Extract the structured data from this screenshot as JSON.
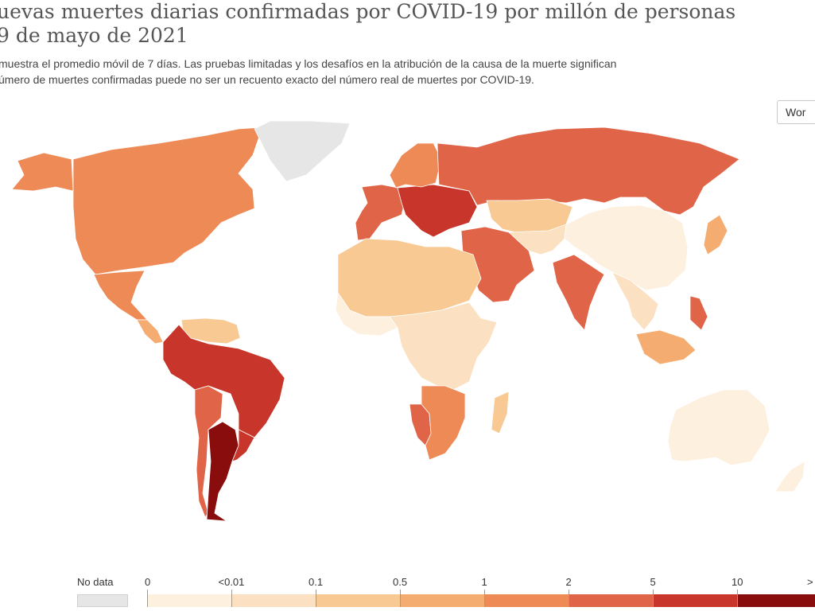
{
  "title_line1": "uevas muertes diarias confirmadas por COVID-19 por millón de personas",
  "title_line2": "9 de mayo de 2021",
  "subtitle_line1": "muestra el promedio móvil de 7 días. Las pruebas limitadas y los desafíos en la atribución de la causa de la muerte significan",
  "subtitle_line2": "úmero de muertes confirmadas puede no ser un recuento exacto del número real de muertes por COVID-19.",
  "region_button": "Wor",
  "legend": {
    "no_data_label": "No data",
    "no_data_color": "#e6e6e6",
    "thresholds": [
      "0",
      "<0.01",
      "0.1",
      "0.5",
      "1",
      "2",
      "5",
      "10",
      ">"
    ],
    "colors": [
      "#fdf0df",
      "#fbe0c1",
      "#f8c993",
      "#f4ac70",
      "#ee8a56",
      "#e06448",
      "#c8352a",
      "#8a0d0d"
    ]
  },
  "regions": [
    {
      "name": "canada-usa",
      "color": "#ee8a56"
    },
    {
      "name": "alaska",
      "color": "#ee8a56"
    },
    {
      "name": "greenland",
      "color": "#e6e6e6"
    },
    {
      "name": "mexico",
      "color": "#ee8a56"
    },
    {
      "name": "central-america",
      "color": "#f4ac70"
    },
    {
      "name": "venezuela-guianas",
      "color": "#f8c993"
    },
    {
      "name": "colombia-peru-brazil",
      "color": "#c8352a"
    },
    {
      "name": "bolivia-chile",
      "color": "#e06448"
    },
    {
      "name": "paraguay-argentina",
      "color": "#8a0d0d"
    },
    {
      "name": "uruguay",
      "color": "#c8352a"
    },
    {
      "name": "western-europe",
      "color": "#e06448"
    },
    {
      "name": "central-eastern-europe",
      "color": "#c8352a"
    },
    {
      "name": "scandinavia",
      "color": "#ee8a56"
    },
    {
      "name": "russia",
      "color": "#e06448"
    },
    {
      "name": "middle-east-iran",
      "color": "#e06448"
    },
    {
      "name": "kazakhstan",
      "color": "#f8c993"
    },
    {
      "name": "central-asia",
      "color": "#fbe0c1"
    },
    {
      "name": "mongolia-china",
      "color": "#fdf0df"
    },
    {
      "name": "india",
      "color": "#e06448"
    },
    {
      "name": "southeast-asia",
      "color": "#fbe0c1"
    },
    {
      "name": "north-africa",
      "color": "#f8c993"
    },
    {
      "name": "west-africa",
      "color": "#fdf0df"
    },
    {
      "name": "central-east-africa",
      "color": "#fbe0c1"
    },
    {
      "name": "namibia",
      "color": "#e06448"
    },
    {
      "name": "southern-africa",
      "color": "#ee8a56"
    },
    {
      "name": "madagascar",
      "color": "#f8c993"
    },
    {
      "name": "japan",
      "color": "#f4ac70"
    },
    {
      "name": "philippines",
      "color": "#e06448"
    },
    {
      "name": "indonesia",
      "color": "#f4ac70"
    },
    {
      "name": "australia",
      "color": "#fdf0df"
    },
    {
      "name": "new-zealand",
      "color": "#fdf0df"
    }
  ]
}
